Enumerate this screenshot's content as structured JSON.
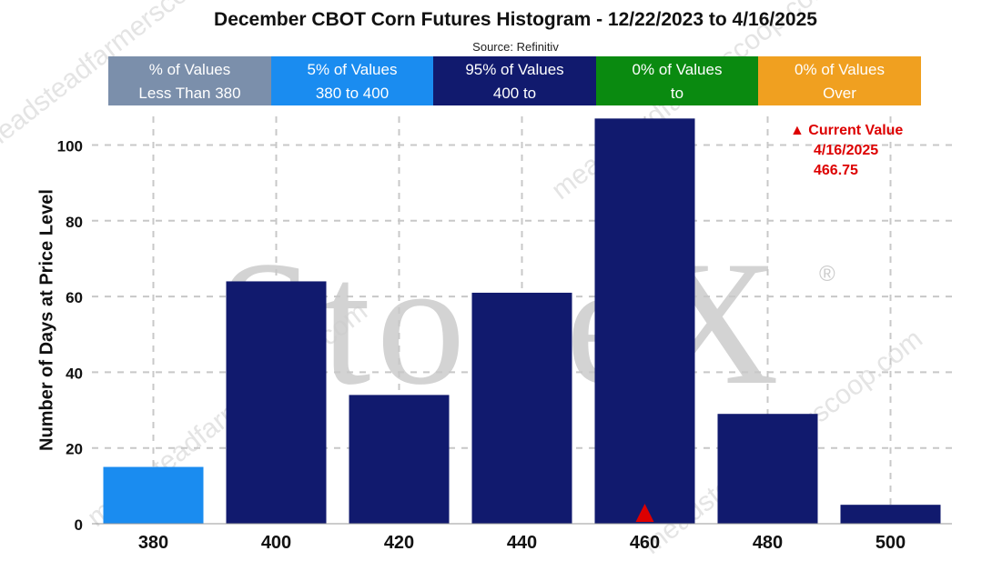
{
  "chart_data": {
    "type": "bar",
    "title": "December CBOT Corn Futures Histogram - 12/22/2023 to 4/16/2025",
    "subtitle": "Source: Refinitiv",
    "xlabel": "",
    "ylabel": "Number of Days at Price Level",
    "categories": [
      "380",
      "400",
      "420",
      "440",
      "460",
      "480",
      "500"
    ],
    "values": [
      15,
      64,
      34,
      61,
      107,
      29,
      5
    ],
    "bar_colors": [
      "#1a8cf0",
      "#111a6e",
      "#111a6e",
      "#111a6e",
      "#111a6e",
      "#111a6e",
      "#111a6e"
    ],
    "ylim": [
      0,
      110
    ],
    "yticks": [
      0,
      20,
      40,
      60,
      80,
      100
    ],
    "grid": true,
    "legend": [
      {
        "line1": "% of Values",
        "line2": "Less Than 380",
        "color": "#7b8fab"
      },
      {
        "line1": "5% of Values",
        "line2": "380 to 400",
        "color": "#1a8cf0"
      },
      {
        "line1": "95% of Values",
        "line2": "400 to",
        "color": "#111a6e"
      },
      {
        "line1": "0% of Values",
        "line2": "to",
        "color": "#0a8a10"
      },
      {
        "line1": "0% of Values",
        "line2": "Over",
        "color": "#f0a020"
      }
    ],
    "current_value": {
      "label": "Current Value",
      "date": "4/16/2025",
      "value": "466.75",
      "marker_symbol": "▲",
      "category": "460",
      "color": "#dd0000"
    }
  },
  "watermark": {
    "logo_text": "StoneX",
    "registered_mark": "®",
    "text": "meadsteadfarmerscoop.com"
  }
}
